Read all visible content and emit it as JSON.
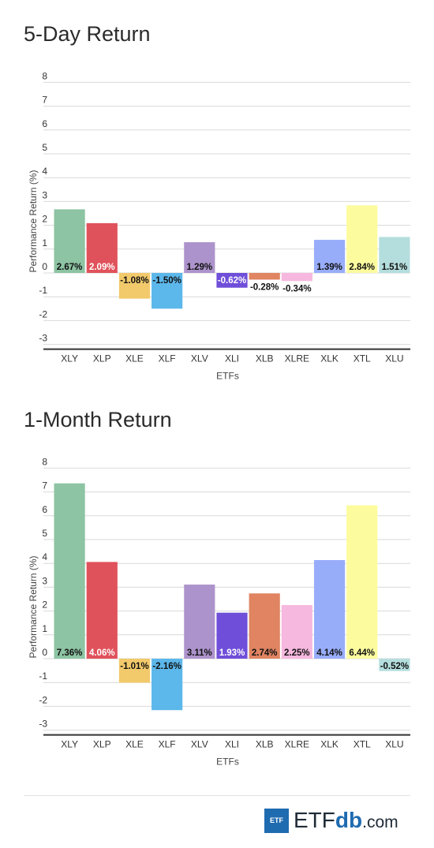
{
  "chart_data": [
    {
      "type": "bar",
      "title": "5-Day Return",
      "xlabel": "ETFs",
      "ylabel": "Performance Return (%)",
      "ylim": [
        -3,
        8
      ],
      "yticks": [
        8,
        7,
        6,
        5,
        4,
        3,
        2,
        1,
        0,
        -1,
        -2,
        -3
      ],
      "grid": true,
      "categories": [
        "XLY",
        "XLP",
        "XLE",
        "XLF",
        "XLV",
        "XLI",
        "XLB",
        "XLRE",
        "XLK",
        "XTL",
        "XLU"
      ],
      "values": [
        2.67,
        2.09,
        -1.08,
        -1.5,
        1.29,
        -0.62,
        -0.28,
        -0.34,
        1.39,
        2.84,
        1.51
      ],
      "labels": [
        "2.67%",
        "2.09%",
        "-1.08%",
        "-1.50%",
        "1.29%",
        "-0.62%",
        "-0.28%",
        "-0.34%",
        "1.39%",
        "2.84%",
        "1.51%"
      ]
    },
    {
      "type": "bar",
      "title": "1-Month Return",
      "xlabel": "ETFs",
      "ylabel": "Performance Return (%)",
      "ylim": [
        -3,
        8
      ],
      "yticks": [
        8,
        7,
        6,
        5,
        4,
        3,
        2,
        1,
        0,
        -1,
        -2,
        -3
      ],
      "grid": true,
      "categories": [
        "XLY",
        "XLP",
        "XLE",
        "XLF",
        "XLV",
        "XLI",
        "XLB",
        "XLRE",
        "XLK",
        "XTL",
        "XLU"
      ],
      "values": [
        7.36,
        4.06,
        -1.01,
        -2.16,
        3.11,
        1.93,
        2.74,
        2.25,
        4.14,
        6.44,
        -0.52
      ],
      "labels": [
        "7.36%",
        "4.06%",
        "-1.01%",
        "-2.16%",
        "3.11%",
        "1.93%",
        "2.74%",
        "2.25%",
        "4.14%",
        "6.44%",
        "-0.52%"
      ]
    }
  ],
  "colors": [
    "#8dc4a3",
    "#e0525b",
    "#f2ca6b",
    "#5cb7ea",
    "#ad93cc",
    "#6f4fd9",
    "#e08462",
    "#f6b8de",
    "#98adfa",
    "#fcfc9f",
    "#b4dedd"
  ],
  "logo": {
    "badge": "ETF",
    "text_main": "ETF",
    "text_db": "db",
    "text_com": ".com"
  }
}
